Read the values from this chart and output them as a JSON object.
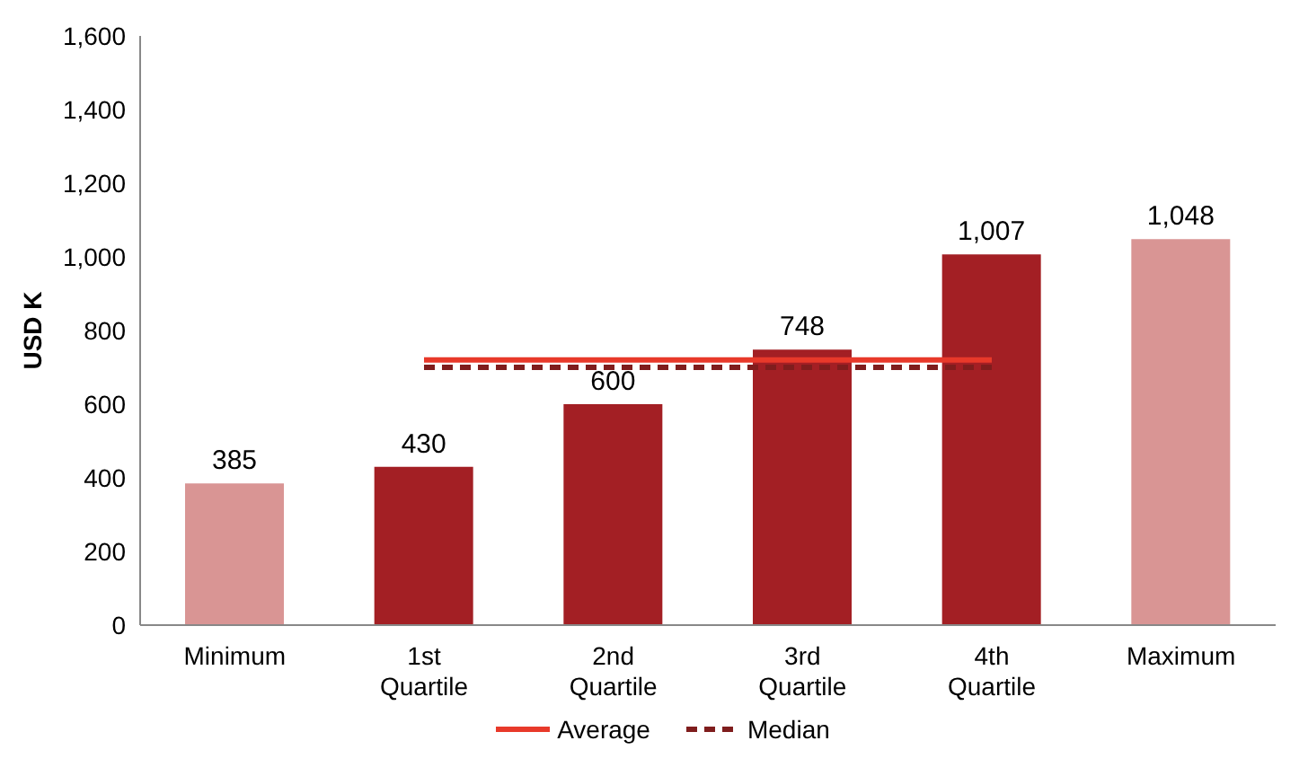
{
  "chart_data": {
    "type": "bar",
    "ylabel": "USD K",
    "categories": [
      "Minimum",
      "1st Quartile",
      "2nd Quartile",
      "3rd Quartile",
      "4th Quartile",
      "Maximum"
    ],
    "series": [
      {
        "colors": [
          "#d99594",
          "#a31f24",
          "#a31f24",
          "#a31f24",
          "#a31f24",
          "#d99594"
        ],
        "values": [
          385,
          430,
          600,
          748,
          1007,
          1048
        ],
        "value_labels": [
          "385",
          "430",
          "600",
          "748",
          "1,007",
          "1,048"
        ]
      },
      {
        "type": "line",
        "name": "Average",
        "color": "#e8392a",
        "line_style": "solid",
        "values": [
          null,
          720,
          720,
          720,
          720,
          null
        ]
      },
      {
        "type": "line",
        "name": "Median",
        "color": "#7f1d1d",
        "line_style": "dashed",
        "values": [
          null,
          700,
          700,
          700,
          700,
          null
        ]
      }
    ],
    "ylim": [
      0,
      1600
    ],
    "yticks": [
      0,
      200,
      400,
      600,
      800,
      {
        "value": 1000,
        "label": "1,000"
      },
      {
        "value": 1200,
        "label": "1,200"
      },
      {
        "value": 1400,
        "label": "1,400"
      },
      {
        "value": 1600,
        "label": "1,600"
      }
    ],
    "grid": false,
    "legend": "bottom"
  }
}
